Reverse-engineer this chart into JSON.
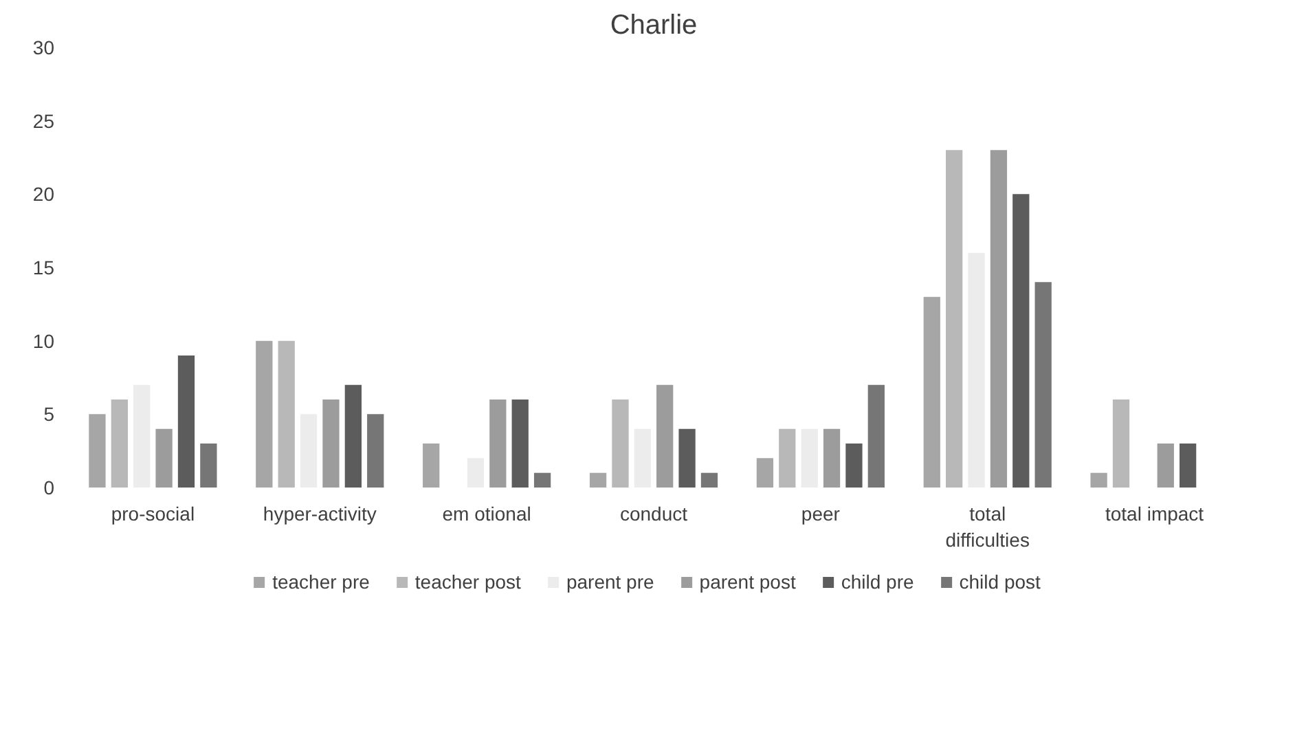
{
  "chart_data": {
    "type": "bar",
    "title": "Charlie",
    "categories": [
      "pro-social",
      "hyper-activity",
      "em otional",
      "conduct",
      "peer",
      "total\ndifficulties",
      "total impact"
    ],
    "series": [
      {
        "name": "teacher pre",
        "color": "#a6a6a6",
        "values": [
          5,
          10,
          3,
          1,
          2,
          13,
          1
        ]
      },
      {
        "name": "teacher post",
        "color": "#b8b8b8",
        "values": [
          6,
          10,
          0,
          6,
          4,
          23,
          6
        ]
      },
      {
        "name": "parent pre",
        "color": "#ececec",
        "values": [
          7,
          5,
          2,
          4,
          4,
          16,
          0
        ]
      },
      {
        "name": "parent post",
        "color": "#9c9c9c",
        "values": [
          4,
          6,
          6,
          7,
          4,
          23,
          3
        ]
      },
      {
        "name": "child pre",
        "color": "#5c5c5c",
        "values": [
          9,
          7,
          6,
          4,
          3,
          20,
          3
        ]
      },
      {
        "name": "child post",
        "color": "#767676",
        "values": [
          3,
          5,
          1,
          1,
          7,
          14,
          null
        ]
      }
    ],
    "ylim": [
      0,
      30
    ],
    "yticks": [
      0,
      5,
      10,
      15,
      20,
      25,
      30
    ],
    "grid": false,
    "legend": "bottom"
  }
}
